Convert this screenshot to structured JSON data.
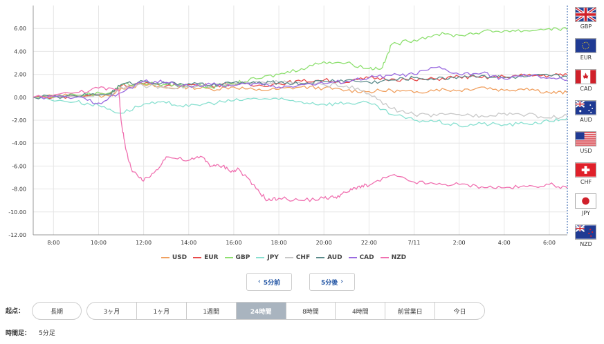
{
  "chart_data": {
    "type": "line",
    "x_ticks": [
      "8:00",
      "10:00",
      "12:00",
      "14:00",
      "16:00",
      "18:00",
      "20:00",
      "22:00",
      "7/11",
      "2:00",
      "4:00",
      "6:00"
    ],
    "y_ticks": [
      "6.00",
      "4.00",
      "2.00",
      "0.00",
      "-2.00",
      "-4.00",
      "-6.00",
      "-8.00",
      "-10.00",
      "-12.00"
    ],
    "ylim": [
      -12,
      8
    ],
    "xlim": [
      7.1,
      30.8
    ],
    "grid": true,
    "legend_position": "bottom",
    "series": [
      {
        "name": "USD",
        "color": "#f0a060",
        "points": [
          [
            7.1,
            0
          ],
          [
            9,
            0.2
          ],
          [
            10.5,
            0.1
          ],
          [
            11,
            0.8
          ],
          [
            12,
            1.1
          ],
          [
            13,
            0.8
          ],
          [
            14,
            0.9
          ],
          [
            15,
            0.7
          ],
          [
            16,
            0.9
          ],
          [
            17,
            0.6
          ],
          [
            18,
            0.7
          ],
          [
            19,
            0.9
          ],
          [
            20,
            0.8
          ],
          [
            21,
            0.6
          ],
          [
            22,
            0.5
          ],
          [
            23,
            0.6
          ],
          [
            24,
            0.4
          ],
          [
            25,
            0.7
          ],
          [
            26,
            0.6
          ],
          [
            27,
            0.9
          ],
          [
            28,
            0.6
          ],
          [
            29,
            0.8
          ],
          [
            30,
            0.4
          ],
          [
            30.8,
            0.4
          ]
        ]
      },
      {
        "name": "EUR",
        "color": "#e84a4a",
        "points": [
          [
            7.1,
            0
          ],
          [
            9,
            0.1
          ],
          [
            10.5,
            0.3
          ],
          [
            11,
            1.0
          ],
          [
            12,
            1.2
          ],
          [
            13,
            1.0
          ],
          [
            14,
            1.1
          ],
          [
            15,
            1.0
          ],
          [
            16,
            1.2
          ],
          [
            17,
            1.0
          ],
          [
            18,
            1.2
          ],
          [
            19,
            1.4
          ],
          [
            20,
            1.5
          ],
          [
            21,
            1.3
          ],
          [
            22,
            1.7
          ],
          [
            23,
            1.6
          ],
          [
            24,
            1.5
          ],
          [
            25,
            1.6
          ],
          [
            26,
            1.8
          ],
          [
            27,
            1.7
          ],
          [
            28,
            1.8
          ],
          [
            29,
            1.9
          ],
          [
            30,
            1.9
          ],
          [
            30.8,
            2.0
          ]
        ]
      },
      {
        "name": "GBP",
        "color": "#8ee070",
        "points": [
          [
            7.1,
            0
          ],
          [
            9,
            0.2
          ],
          [
            10.5,
            0.4
          ],
          [
            11,
            1.1
          ],
          [
            12,
            1.2
          ],
          [
            13,
            1.1
          ],
          [
            14,
            1.0
          ],
          [
            15,
            0.9
          ],
          [
            16,
            1.2
          ],
          [
            17,
            1.6
          ],
          [
            18,
            2.0
          ],
          [
            19,
            2.5
          ],
          [
            20,
            3.1
          ],
          [
            21,
            3.0
          ],
          [
            22,
            2.5
          ],
          [
            22.6,
            2.6
          ],
          [
            23,
            4.6
          ],
          [
            24,
            5.0
          ],
          [
            25,
            5.5
          ],
          [
            26,
            5.4
          ],
          [
            27,
            5.7
          ],
          [
            28,
            5.8
          ],
          [
            29,
            5.8
          ],
          [
            30,
            6.0
          ],
          [
            30.8,
            5.9
          ]
        ]
      },
      {
        "name": "JPY",
        "color": "#88e0d0",
        "points": [
          [
            7.1,
            0
          ],
          [
            9,
            -0.4
          ],
          [
            10,
            -0.7
          ],
          [
            11,
            -1.4
          ],
          [
            12,
            -0.6
          ],
          [
            13,
            -0.5
          ],
          [
            14,
            -0.8
          ],
          [
            15,
            -0.5
          ],
          [
            16,
            -0.3
          ],
          [
            17,
            -0.1
          ],
          [
            18,
            -0.2
          ],
          [
            19,
            -0.4
          ],
          [
            20,
            -0.6
          ],
          [
            21,
            -0.5
          ],
          [
            22,
            -0.5
          ],
          [
            23,
            -1.5
          ],
          [
            24,
            -2.0
          ],
          [
            25,
            -2.1
          ],
          [
            26,
            -2.5
          ],
          [
            27,
            -2.3
          ],
          [
            28,
            -2.4
          ],
          [
            29,
            -2.3
          ],
          [
            30,
            -2.1
          ],
          [
            30.8,
            -1.8
          ]
        ]
      },
      {
        "name": "CHF",
        "color": "#c8c8c8",
        "points": [
          [
            7.1,
            0
          ],
          [
            9,
            0.1
          ],
          [
            10.5,
            0.2
          ],
          [
            11,
            0.9
          ],
          [
            12,
            1.0
          ],
          [
            13,
            0.9
          ],
          [
            14,
            0.9
          ],
          [
            15,
            1.0
          ],
          [
            16,
            1.1
          ],
          [
            17,
            1.4
          ],
          [
            18,
            1.3
          ],
          [
            19,
            1.2
          ],
          [
            20,
            1.1
          ],
          [
            21,
            1.0
          ],
          [
            22,
            0.3
          ],
          [
            23,
            -1.0
          ],
          [
            24,
            -1.5
          ],
          [
            25,
            -1.6
          ],
          [
            26,
            -1.5
          ],
          [
            27,
            -1.6
          ],
          [
            28,
            -1.4
          ],
          [
            29,
            -1.5
          ],
          [
            30,
            -1.8
          ],
          [
            30.8,
            -1.6
          ]
        ]
      },
      {
        "name": "AUD",
        "color": "#5a8a8a",
        "points": [
          [
            7.1,
            0
          ],
          [
            9,
            0.1
          ],
          [
            10.5,
            0.3
          ],
          [
            11,
            1.1
          ],
          [
            12,
            1.4
          ],
          [
            13,
            1.2
          ],
          [
            14,
            1.2
          ],
          [
            15,
            1.0
          ],
          [
            16,
            1.3
          ],
          [
            17,
            1.2
          ],
          [
            18,
            1.3
          ],
          [
            19,
            1.2
          ],
          [
            20,
            1.4
          ],
          [
            21,
            1.5
          ],
          [
            22,
            1.3
          ],
          [
            23,
            1.5
          ],
          [
            24,
            1.7
          ],
          [
            25,
            1.6
          ],
          [
            26,
            1.8
          ],
          [
            27,
            1.9
          ],
          [
            28,
            1.7
          ],
          [
            29,
            1.8
          ],
          [
            30,
            1.9
          ],
          [
            30.8,
            1.8
          ]
        ]
      },
      {
        "name": "CAD",
        "color": "#9a6ae0",
        "points": [
          [
            7.1,
            0
          ],
          [
            9,
            0.0
          ],
          [
            10,
            -0.5
          ],
          [
            11,
            0.4
          ],
          [
            12,
            1.4
          ],
          [
            13,
            1.3
          ],
          [
            14,
            1.0
          ],
          [
            15,
            1.1
          ],
          [
            16,
            1.0
          ],
          [
            17,
            1.2
          ],
          [
            18,
            0.9
          ],
          [
            19,
            1.1
          ],
          [
            20,
            1.2
          ],
          [
            21,
            1.4
          ],
          [
            22,
            1.7
          ],
          [
            23,
            1.9
          ],
          [
            24,
            2.0
          ],
          [
            25,
            2.6
          ],
          [
            26,
            2.0
          ],
          [
            27,
            2.1
          ],
          [
            28,
            1.6
          ],
          [
            29,
            1.9
          ],
          [
            30,
            1.7
          ],
          [
            30.8,
            1.5
          ]
        ]
      },
      {
        "name": "NZD",
        "color": "#f070b0",
        "points": [
          [
            7.1,
            0
          ],
          [
            9,
            0.4
          ],
          [
            10,
            0.8
          ],
          [
            10.9,
            0.6
          ],
          [
            11,
            -2.0
          ],
          [
            11.2,
            -4.5
          ],
          [
            11.5,
            -6.5
          ],
          [
            12,
            -7.3
          ],
          [
            12.5,
            -6.5
          ],
          [
            13,
            -5.2
          ],
          [
            14,
            -5.5
          ],
          [
            14.6,
            -5.2
          ],
          [
            15,
            -6.0
          ],
          [
            15.5,
            -6.0
          ],
          [
            16,
            -6.5
          ],
          [
            16.2,
            -6.2
          ],
          [
            17,
            -8.0
          ],
          [
            17.5,
            -9.0
          ],
          [
            18,
            -8.8
          ],
          [
            19,
            -9.0
          ],
          [
            20,
            -8.8
          ],
          [
            20.5,
            -8.7
          ],
          [
            21,
            -8.3
          ],
          [
            21.5,
            -7.8
          ],
          [
            22,
            -7.7
          ],
          [
            23,
            -6.8
          ],
          [
            24,
            -7.4
          ],
          [
            25,
            -7.6
          ],
          [
            26,
            -7.6
          ],
          [
            27,
            -7.8
          ],
          [
            28,
            -7.9
          ],
          [
            29,
            -7.8
          ],
          [
            30,
            -7.6
          ],
          [
            30.8,
            -7.9
          ]
        ]
      }
    ]
  },
  "flags": [
    "GBP",
    "EUR",
    "CAD",
    "AUD",
    "USD",
    "CHF",
    "JPY",
    "NZD"
  ],
  "legend": [
    "USD",
    "EUR",
    "GBP",
    "JPY",
    "CHF",
    "AUD",
    "CAD",
    "NZD"
  ],
  "nav": {
    "prev": "5分前",
    "next": "5分後"
  },
  "controls": {
    "start_label": "起点：",
    "long_term": "長期",
    "ranges": [
      "3ヶ月",
      "1ヶ月",
      "1週間",
      "24時間",
      "8時間",
      "4時間",
      "前営業日",
      "今日"
    ],
    "active_range": "24時間",
    "interval_label": "時間足：",
    "interval_value": "5分足"
  }
}
